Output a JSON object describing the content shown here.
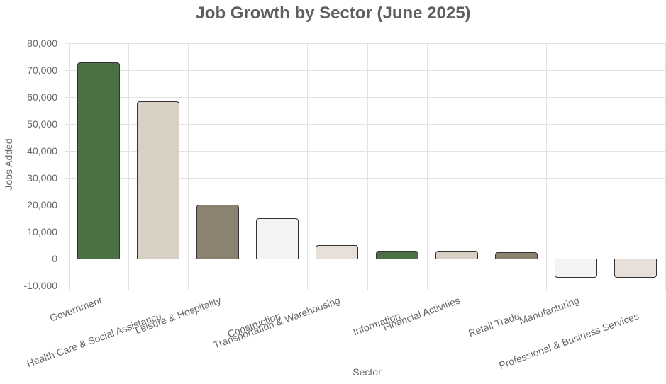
{
  "chart_data": {
    "type": "bar",
    "title": "Job Growth by Sector (June 2025)",
    "xlabel": "Sector",
    "ylabel": "Jobs Added",
    "ylim": [
      -10000,
      80000
    ],
    "yticks": [
      "80,000",
      "70,000",
      "60,000",
      "50,000",
      "40,000",
      "30,000",
      "20,000",
      "10,000",
      "0",
      "-10,000"
    ],
    "grid": true,
    "legend": null,
    "categories": [
      "Government",
      "Health Care & Social Assistance",
      "Leisure & Hospitality",
      "Construction",
      "Transportation & Warehousing",
      "Information",
      "Financial Activities",
      "Retail Trade",
      "Manufacturing",
      "Professional & Business Services"
    ],
    "values": [
      73000,
      58500,
      20000,
      15000,
      5000,
      3000,
      3000,
      2400,
      -7000,
      -7000
    ],
    "colors": [
      "#4a7043",
      "#d8d0c2",
      "#8b8272",
      "#f3f3f3",
      "#e6e0d8",
      "#4a7043",
      "#d8d0c2",
      "#8b8272",
      "#f3f3f3",
      "#e6e0d8"
    ]
  }
}
